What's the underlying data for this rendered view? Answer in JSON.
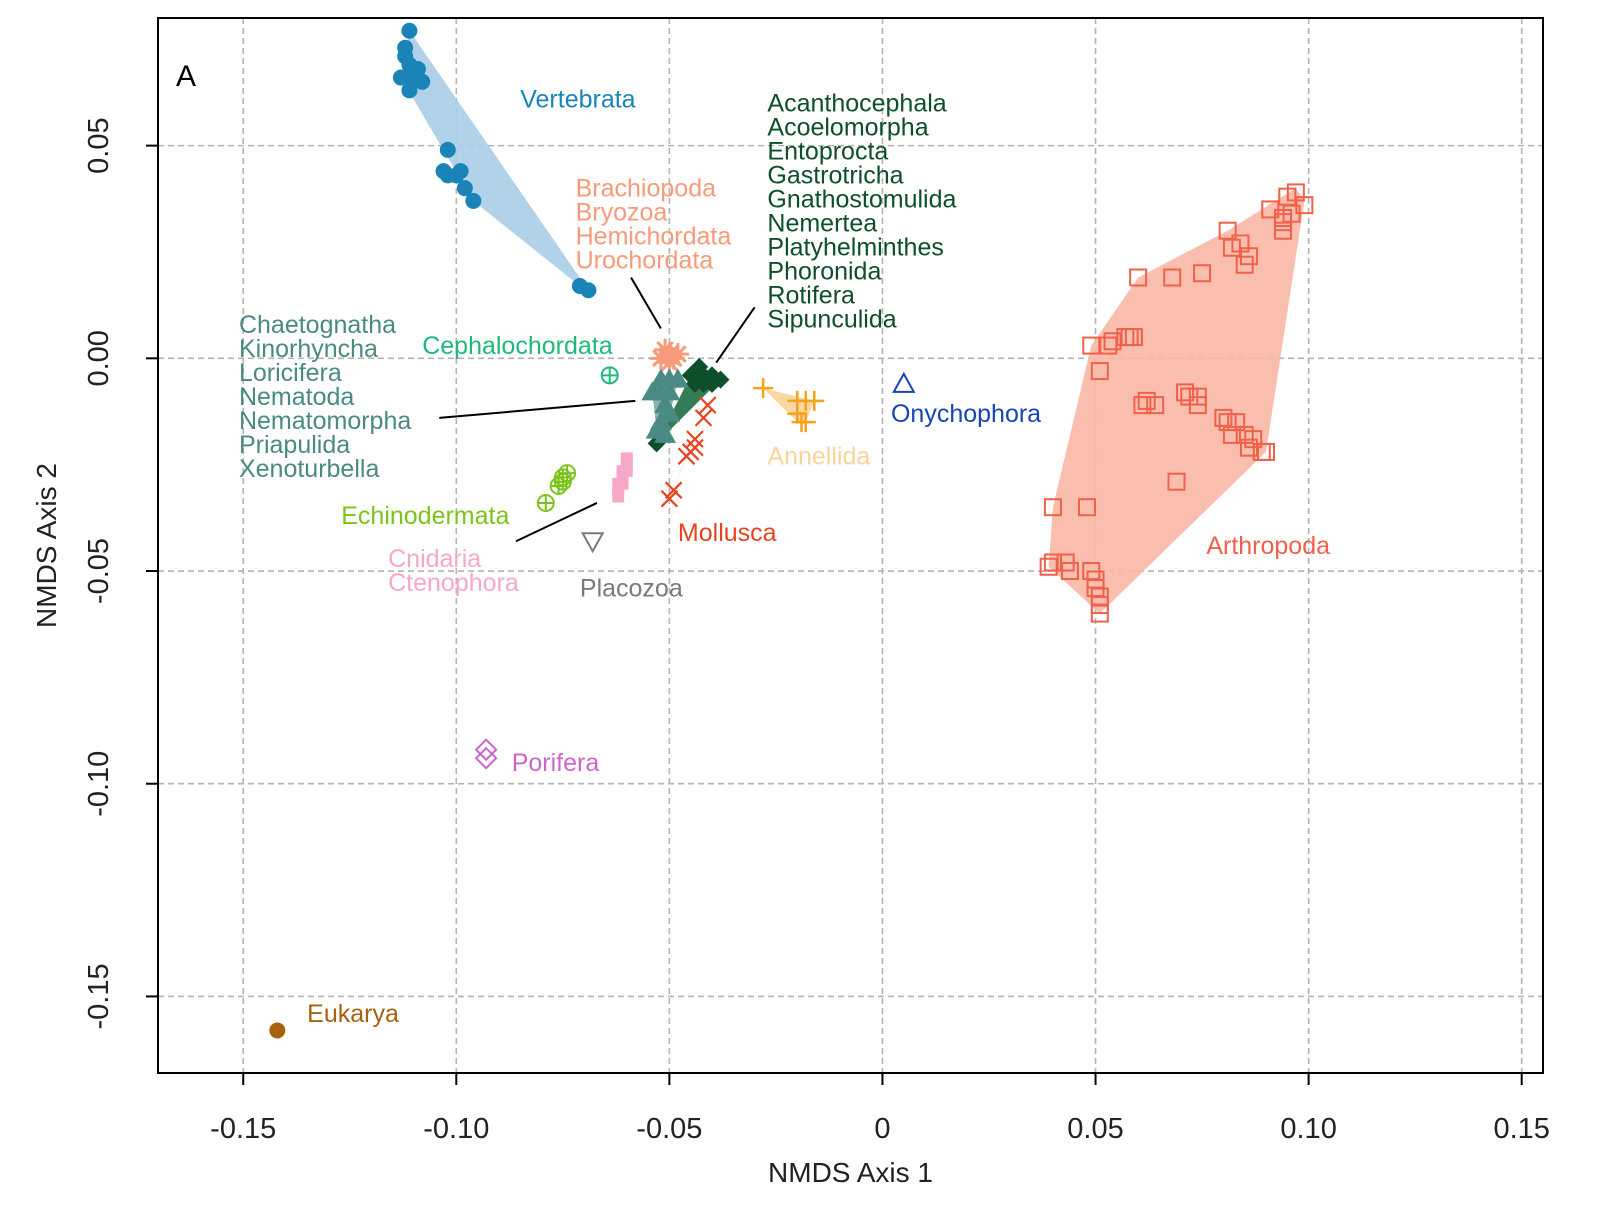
{
  "chart_data": {
    "type": "scatter",
    "panel_label": "A",
    "xlabel": "NMDS Axis 1",
    "ylabel": "NMDS Axis 2",
    "xlim": [
      -0.17,
      0.155
    ],
    "ylim": [
      -0.168,
      0.08
    ],
    "xticks": [
      -0.15,
      -0.1,
      -0.05,
      0,
      0.05,
      0.1,
      0.15
    ],
    "xtick_labels": [
      "-0.15",
      "-0.10",
      "-0.05",
      "0",
      "0.05",
      "0.10",
      "0.15"
    ],
    "yticks": [
      0.05,
      0.0,
      -0.05,
      -0.1,
      -0.15
    ],
    "ytick_labels": [
      "0.05",
      "0.00",
      "-0.05",
      "-0.10",
      "-0.15"
    ],
    "grid": true,
    "groups": [
      {
        "name": "Vertebrata",
        "color": "#1a84b8",
        "fill": "#a9cde6",
        "marker": "dot",
        "points": [
          [
            -0.111,
            0.077
          ],
          [
            -0.112,
            0.073
          ],
          [
            -0.112,
            0.071
          ],
          [
            -0.111,
            0.069
          ],
          [
            -0.109,
            0.068
          ],
          [
            -0.113,
            0.066
          ],
          [
            -0.111,
            0.066
          ],
          [
            -0.108,
            0.065
          ],
          [
            -0.111,
            0.063
          ],
          [
            -0.102,
            0.049
          ],
          [
            -0.103,
            0.044
          ],
          [
            -0.1,
            0.043
          ],
          [
            -0.099,
            0.044
          ],
          [
            -0.102,
            0.043
          ],
          [
            -0.098,
            0.04
          ],
          [
            -0.096,
            0.037
          ],
          [
            -0.071,
            0.017
          ],
          [
            -0.069,
            0.016
          ]
        ],
        "hull": [
          [
            -0.111,
            0.077
          ],
          [
            -0.113,
            0.066
          ],
          [
            -0.096,
            0.037
          ],
          [
            -0.071,
            0.017
          ],
          [
            -0.069,
            0.016
          ]
        ]
      },
      {
        "name": "Arthropoda",
        "color": "#f0614a",
        "fill": "#f9b7a6",
        "marker": "square-open",
        "points": [
          [
            0.097,
            0.039
          ],
          [
            0.095,
            0.038
          ],
          [
            0.099,
            0.036
          ],
          [
            0.091,
            0.035
          ],
          [
            0.094,
            0.033
          ],
          [
            0.096,
            0.034
          ],
          [
            0.094,
            0.032
          ],
          [
            0.094,
            0.03
          ],
          [
            0.081,
            0.03
          ],
          [
            0.082,
            0.026
          ],
          [
            0.084,
            0.027
          ],
          [
            0.086,
            0.024
          ],
          [
            0.085,
            0.022
          ],
          [
            0.06,
            0.019
          ],
          [
            0.068,
            0.019
          ],
          [
            0.075,
            0.02
          ],
          [
            0.049,
            0.003
          ],
          [
            0.053,
            0.003
          ],
          [
            0.054,
            0.004
          ],
          [
            0.057,
            0.005
          ],
          [
            0.058,
            0.005
          ],
          [
            0.059,
            0.005
          ],
          [
            0.051,
            -0.003
          ],
          [
            0.061,
            -0.011
          ],
          [
            0.062,
            -0.01
          ],
          [
            0.064,
            -0.011
          ],
          [
            0.071,
            -0.008
          ],
          [
            0.072,
            -0.009
          ],
          [
            0.074,
            -0.009
          ],
          [
            0.074,
            -0.011
          ],
          [
            0.08,
            -0.014
          ],
          [
            0.081,
            -0.015
          ],
          [
            0.083,
            -0.015
          ],
          [
            0.082,
            -0.018
          ],
          [
            0.085,
            -0.018
          ],
          [
            0.087,
            -0.019
          ],
          [
            0.086,
            -0.021
          ],
          [
            0.089,
            -0.022
          ],
          [
            0.09,
            -0.022
          ],
          [
            0.069,
            -0.029
          ],
          [
            0.04,
            -0.035
          ],
          [
            0.048,
            -0.035
          ],
          [
            0.04,
            -0.048
          ],
          [
            0.039,
            -0.049
          ],
          [
            0.043,
            -0.048
          ],
          [
            0.044,
            -0.05
          ],
          [
            0.049,
            -0.05
          ],
          [
            0.05,
            -0.052
          ],
          [
            0.05,
            -0.054
          ],
          [
            0.051,
            -0.056
          ],
          [
            0.051,
            -0.058
          ],
          [
            0.051,
            -0.06
          ]
        ],
        "hull": [
          [
            0.097,
            0.04
          ],
          [
            0.099,
            0.037
          ],
          [
            0.09,
            -0.022
          ],
          [
            0.051,
            -0.06
          ],
          [
            0.039,
            -0.049
          ],
          [
            0.04,
            -0.035
          ],
          [
            0.049,
            0.003
          ],
          [
            0.06,
            0.019
          ],
          [
            0.081,
            0.03
          ]
        ]
      },
      {
        "name": "Onychophora",
        "color": "#1546b4",
        "marker": "triangle-up-open",
        "points": [
          [
            0.005,
            -0.006
          ]
        ]
      },
      {
        "name": "Annellida",
        "color": "#f5a21a",
        "fill": "#f8d49a",
        "marker": "plus",
        "points": [
          [
            -0.028,
            -0.007
          ],
          [
            -0.02,
            -0.01
          ],
          [
            -0.018,
            -0.01
          ],
          [
            -0.016,
            -0.01
          ],
          [
            -0.02,
            -0.013
          ],
          [
            -0.019,
            -0.015
          ],
          [
            -0.018,
            -0.015
          ]
        ],
        "hull": [
          [
            -0.028,
            -0.007
          ],
          [
            -0.016,
            -0.01
          ],
          [
            -0.018,
            -0.015
          ],
          [
            -0.02,
            -0.015
          ]
        ]
      },
      {
        "name": "Mollusca",
        "color": "#e8431f",
        "fill": "#f6a98f",
        "marker": "x",
        "points": [
          [
            -0.041,
            -0.011
          ],
          [
            -0.042,
            -0.014
          ],
          [
            -0.044,
            -0.019
          ],
          [
            -0.044,
            -0.021
          ],
          [
            -0.045,
            -0.022
          ],
          [
            -0.046,
            -0.023
          ],
          [
            -0.049,
            -0.031
          ],
          [
            -0.05,
            -0.033
          ]
        ],
        "hull": [
          [
            -0.041,
            -0.011
          ],
          [
            -0.046,
            -0.023
          ],
          [
            -0.05,
            -0.033
          ]
        ]
      },
      {
        "name": "Brachiopoda, Bryozoa, Hemichordata, Urochordata",
        "color": "#f79a7a",
        "marker": "star",
        "points": [
          [
            -0.051,
            0.002
          ],
          [
            -0.05,
            0.001
          ],
          [
            -0.049,
            0.0
          ],
          [
            -0.052,
            0.0
          ],
          [
            -0.05,
            -0.001
          ],
          [
            -0.048,
            0.001
          ]
        ]
      },
      {
        "name": "Acanthocephala, Acoelomorpha, Entoprocta, Gastrotricha, Gnathostomulida, Nemertea, Platyhelminthes, Phoronida, Rotifera, Sipunculida",
        "color": "#0d4f2b",
        "fill": "#1f6d44",
        "marker": "diamond",
        "points": [
          [
            -0.043,
            -0.002
          ],
          [
            -0.045,
            -0.004
          ],
          [
            -0.042,
            -0.004
          ],
          [
            -0.04,
            -0.004
          ],
          [
            -0.041,
            -0.005
          ],
          [
            -0.039,
            -0.005
          ],
          [
            -0.038,
            -0.005
          ],
          [
            -0.044,
            -0.006
          ],
          [
            -0.042,
            -0.006
          ],
          [
            -0.04,
            -0.006
          ],
          [
            -0.053,
            -0.02
          ]
        ],
        "hull": [
          [
            -0.043,
            -0.002
          ],
          [
            -0.038,
            -0.005
          ],
          [
            -0.053,
            -0.02
          ],
          [
            -0.045,
            -0.004
          ]
        ]
      },
      {
        "name": "Chaetognatha, Kinorhyncha, Loricifera, Nematoda, Nematomorpha, Priapulida, Xenoturbella",
        "color": "#4a8a82",
        "fill": "#7eaaa4",
        "marker": "triangle",
        "points": [
          [
            -0.052,
            -0.005
          ],
          [
            -0.05,
            -0.005
          ],
          [
            -0.048,
            -0.005
          ],
          [
            -0.054,
            -0.008
          ],
          [
            -0.052,
            -0.008
          ],
          [
            -0.05,
            -0.008
          ],
          [
            -0.051,
            -0.011
          ],
          [
            -0.05,
            -0.013
          ],
          [
            -0.052,
            -0.015
          ],
          [
            -0.053,
            -0.017
          ],
          [
            -0.051,
            -0.018
          ]
        ],
        "hull": [
          [
            -0.052,
            -0.005
          ],
          [
            -0.048,
            -0.005
          ],
          [
            -0.051,
            -0.018
          ],
          [
            -0.053,
            -0.017
          ],
          [
            -0.054,
            -0.008
          ]
        ]
      },
      {
        "name": "Cephalochordata",
        "color": "#1fba7a",
        "marker": "circle-plus",
        "points": [
          [
            -0.064,
            -0.004
          ]
        ]
      },
      {
        "name": "Echinodermata",
        "color": "#7cc41a",
        "marker": "circle-plus",
        "points": [
          [
            -0.074,
            -0.027
          ],
          [
            -0.075,
            -0.028
          ],
          [
            -0.075,
            -0.029
          ],
          [
            -0.076,
            -0.03
          ],
          [
            -0.079,
            -0.034
          ]
        ]
      },
      {
        "name": "Cnidaria, Ctenophora",
        "color": "#f7a8c8",
        "marker": "square",
        "points": [
          [
            -0.06,
            -0.024
          ],
          [
            -0.06,
            -0.026
          ],
          [
            -0.061,
            -0.027
          ],
          [
            -0.061,
            -0.029
          ],
          [
            -0.062,
            -0.03
          ],
          [
            -0.062,
            -0.032
          ]
        ]
      },
      {
        "name": "Placozoa",
        "color": "#7a7a7a",
        "marker": "triangle-down-open",
        "points": [
          [
            -0.068,
            -0.043
          ]
        ]
      },
      {
        "name": "Porifera",
        "color": "#cc66cc",
        "marker": "diamond-open",
        "points": [
          [
            -0.093,
            -0.092
          ],
          [
            -0.093,
            -0.094
          ]
        ]
      },
      {
        "name": "Eukarya",
        "color": "#a8610e",
        "marker": "dot",
        "points": [
          [
            -0.142,
            -0.158
          ]
        ]
      }
    ],
    "annotations": [
      {
        "lines": [
          "Vertebrata"
        ],
        "color": "#1a84b8",
        "x": -0.085,
        "y": 0.059
      },
      {
        "lines": [
          "Acanthocephala",
          "Acoelomorpha",
          "Entoprocta",
          "Gastrotricha",
          "Gnathostomulida",
          "Nemertea",
          "Platyhelminthes",
          "Phoronida",
          "Rotifera",
          "Sipunculida"
        ],
        "color": "#0d4f2b",
        "x": -0.027,
        "y": 0.058
      },
      {
        "lines": [
          "Brachiopoda",
          "Bryozoa",
          "Hemichordata",
          "Urochordata"
        ],
        "color": "#f79a7a",
        "x": -0.072,
        "y": 0.038
      },
      {
        "lines": [
          "Chaetognatha",
          "Kinorhyncha",
          "Loricifera",
          "Nematoda",
          "Nematomorpha",
          "Priapulida",
          "Xenoturbella"
        ],
        "color": "#4a8a82",
        "x": -0.151,
        "y": 0.006
      },
      {
        "lines": [
          "Cephalochordata"
        ],
        "color": "#1fba7a",
        "x": -0.108,
        "y": 0.001
      },
      {
        "lines": [
          "Onychophora"
        ],
        "color": "#1546b4",
        "x": 0.002,
        "y": -0.015
      },
      {
        "lines": [
          "Annellida"
        ],
        "color": "#f8d49a",
        "x": -0.027,
        "y": -0.025
      },
      {
        "lines": [
          "Echinodermata"
        ],
        "color": "#7cc41a",
        "x": -0.127,
        "y": -0.039
      },
      {
        "lines": [
          "Mollusca"
        ],
        "color": "#e8431f",
        "x": -0.048,
        "y": -0.043
      },
      {
        "lines": [
          "Arthropoda"
        ],
        "color": "#f0614a",
        "x": 0.076,
        "y": -0.046
      },
      {
        "lines": [
          "Cnidaria",
          "Ctenophora"
        ],
        "color": "#f7a8c8",
        "x": -0.116,
        "y": -0.049
      },
      {
        "lines": [
          "Placozoa"
        ],
        "color": "#7a7a7a",
        "x": -0.071,
        "y": -0.056
      },
      {
        "lines": [
          "Porifera"
        ],
        "color": "#cc66cc",
        "x": -0.087,
        "y": -0.097
      },
      {
        "lines": [
          "Eukarya"
        ],
        "color": "#a8610e",
        "x": -0.135,
        "y": -0.156
      }
    ],
    "leader_lines": [
      {
        "from": [
          -0.052,
          0.007
        ],
        "to": [
          -0.059,
          0.019
        ]
      },
      {
        "from": [
          -0.039,
          -0.001
        ],
        "to": [
          -0.03,
          0.012
        ]
      },
      {
        "from": [
          -0.104,
          -0.014
        ],
        "to": [
          -0.058,
          -0.01
        ]
      },
      {
        "from": [
          -0.086,
          -0.043
        ],
        "to": [
          -0.067,
          -0.034
        ]
      }
    ]
  }
}
